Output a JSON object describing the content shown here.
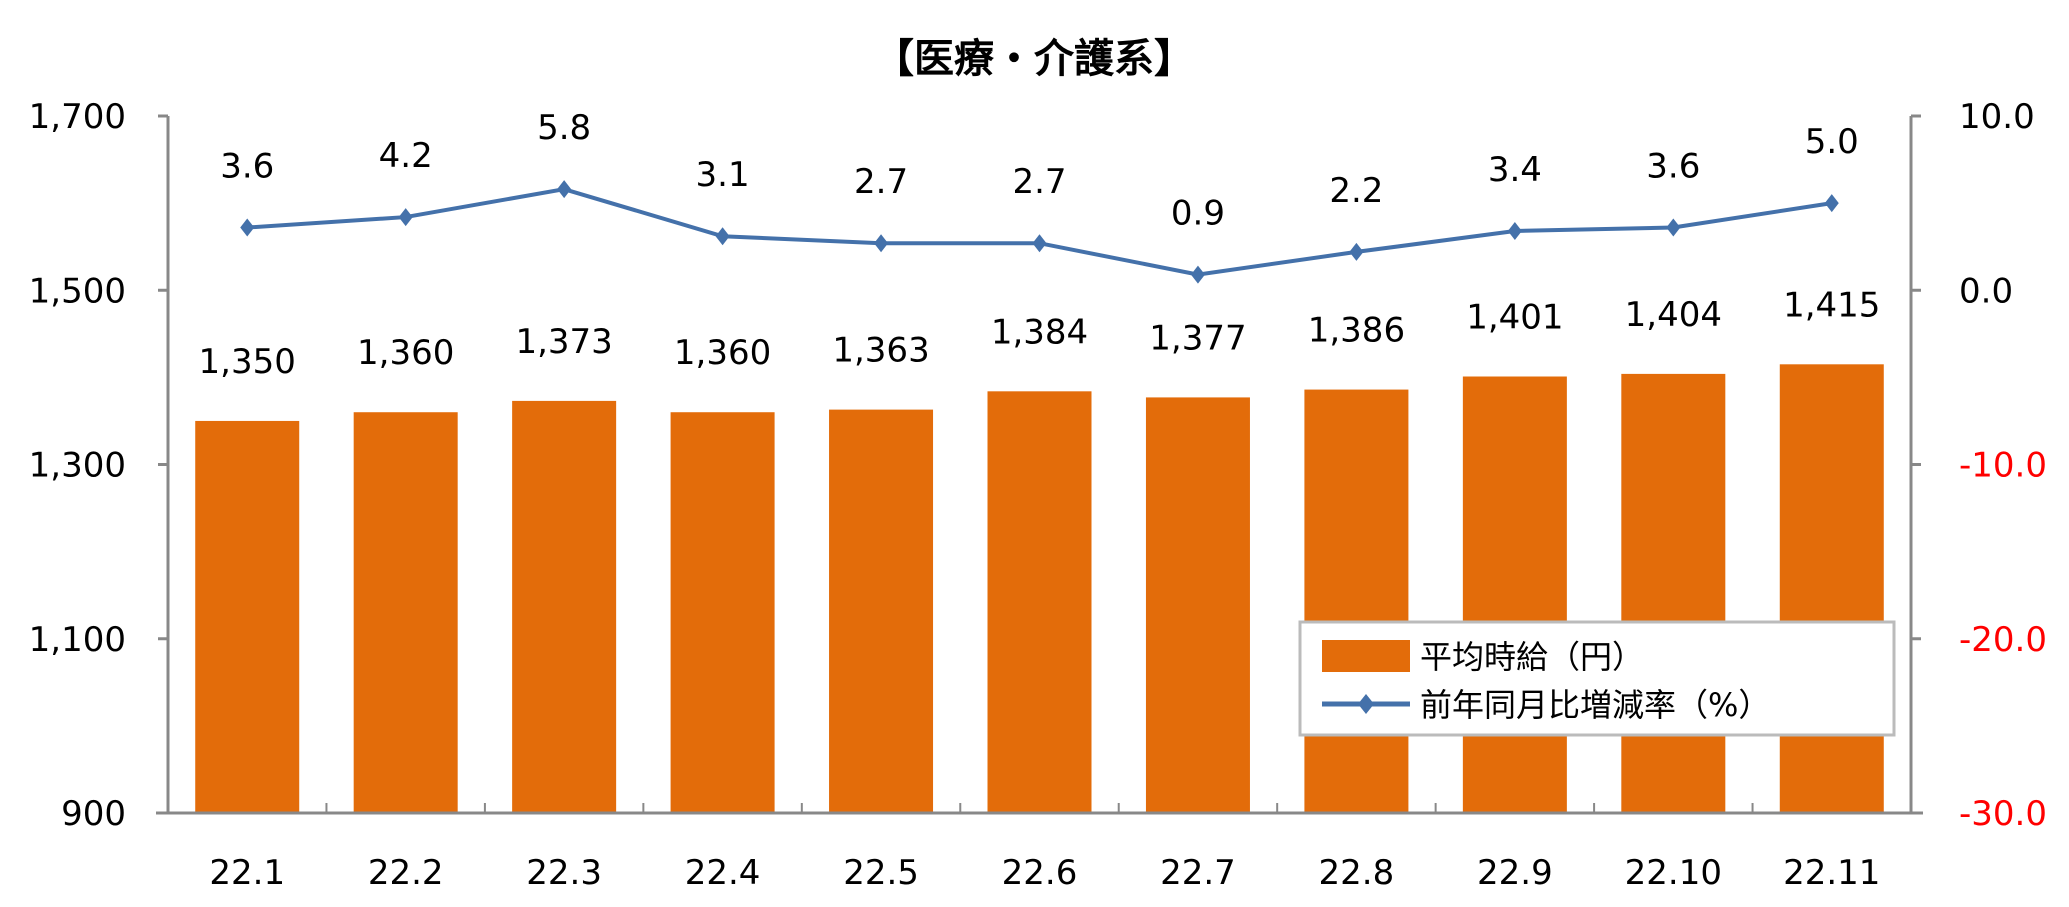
{
  "chart_data": {
    "type": "bar+line",
    "title": "【医療・介護系】",
    "categories": [
      "22.1",
      "22.2",
      "22.3",
      "22.4",
      "22.5",
      "22.6",
      "22.7",
      "22.8",
      "22.9",
      "22.10",
      "22.11"
    ],
    "series": [
      {
        "name": "平均時給（円）",
        "type": "bar",
        "axis": "left",
        "color": "#E36C0A",
        "values": [
          1350,
          1360,
          1373,
          1360,
          1363,
          1384,
          1377,
          1386,
          1401,
          1404,
          1415
        ],
        "labels": [
          "1,350",
          "1,360",
          "1,373",
          "1,360",
          "1,363",
          "1,384",
          "1,377",
          "1,386",
          "1,401",
          "1,404",
          "1,415"
        ]
      },
      {
        "name": "前年同月比増減率（%）",
        "type": "line",
        "axis": "right",
        "color": "#4471AA",
        "values": [
          3.6,
          4.2,
          5.8,
          3.1,
          2.7,
          2.7,
          0.9,
          2.2,
          3.4,
          3.6,
          5.0
        ],
        "labels": [
          "3.6",
          "4.2",
          "5.8",
          "3.1",
          "2.7",
          "2.7",
          "0.9",
          "2.2",
          "3.4",
          "3.6",
          "5.0"
        ]
      }
    ],
    "left_axis": {
      "ylim": [
        900,
        1700
      ],
      "ticks": [
        "1,700",
        "1,500",
        "1,300",
        "1,100",
        "900"
      ],
      "values": [
        1700,
        1500,
        1300,
        1100,
        900
      ]
    },
    "right_axis": {
      "ylim": [
        -30,
        10
      ],
      "ticks": [
        "10.0",
        "0.0",
        "-10.0",
        "-20.0",
        "-30.0"
      ],
      "values": [
        10,
        0,
        -10,
        -20,
        -30
      ],
      "negative_color": "#FF0000"
    },
    "grid": false,
    "legend": "bottom-right"
  }
}
